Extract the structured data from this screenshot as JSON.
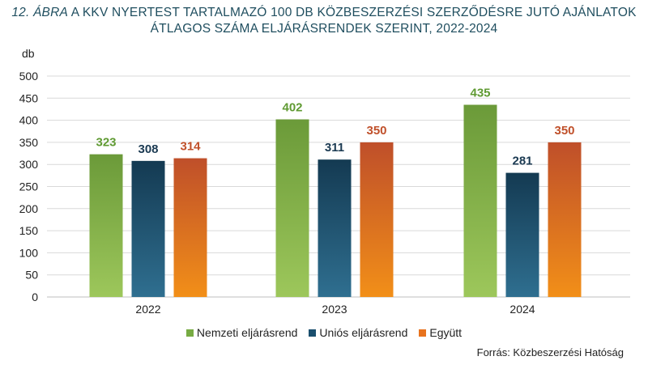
{
  "title": {
    "label": "12. ÁBRA",
    "line1": "A KKV NYERTEST TARTALMAZÓ 100 DB KÖZBESZERZÉSI SZERZŐDÉSRE JUTÓ AJÁNLATOK",
    "line2": "ÁTLAGOS SZÁMA ELJÁRÁSRENDEK SZERINT, 2022-2024"
  },
  "source": "Forrás: Közbeszerzési Hatóság",
  "colors": {
    "title": "#1f4e5f",
    "nemzeti": "#77ab43",
    "unios": "#1a4f6e",
    "egyutt": "#e8731e"
  },
  "chart_data": {
    "type": "bar",
    "ylabel": "db",
    "ylim": [
      0,
      500
    ],
    "yticks": [
      0,
      50,
      100,
      150,
      200,
      250,
      300,
      350,
      400,
      450,
      500
    ],
    "grid": true,
    "legend_position": "bottom",
    "categories": [
      "2022",
      "2023",
      "2024"
    ],
    "series": [
      {
        "name": "Nemzeti eljárásrend",
        "values": [
          323,
          402,
          435
        ],
        "color": "#77ab43",
        "label_color": "#5f9a32"
      },
      {
        "name": "Uniós eljárásrend",
        "values": [
          308,
          311,
          281
        ],
        "color": "#1a4f6e",
        "label_color": "#1b3a52"
      },
      {
        "name": "Együtt",
        "values": [
          314,
          350,
          350
        ],
        "color": "#e8731e",
        "label_color": "#c0502a"
      }
    ]
  }
}
